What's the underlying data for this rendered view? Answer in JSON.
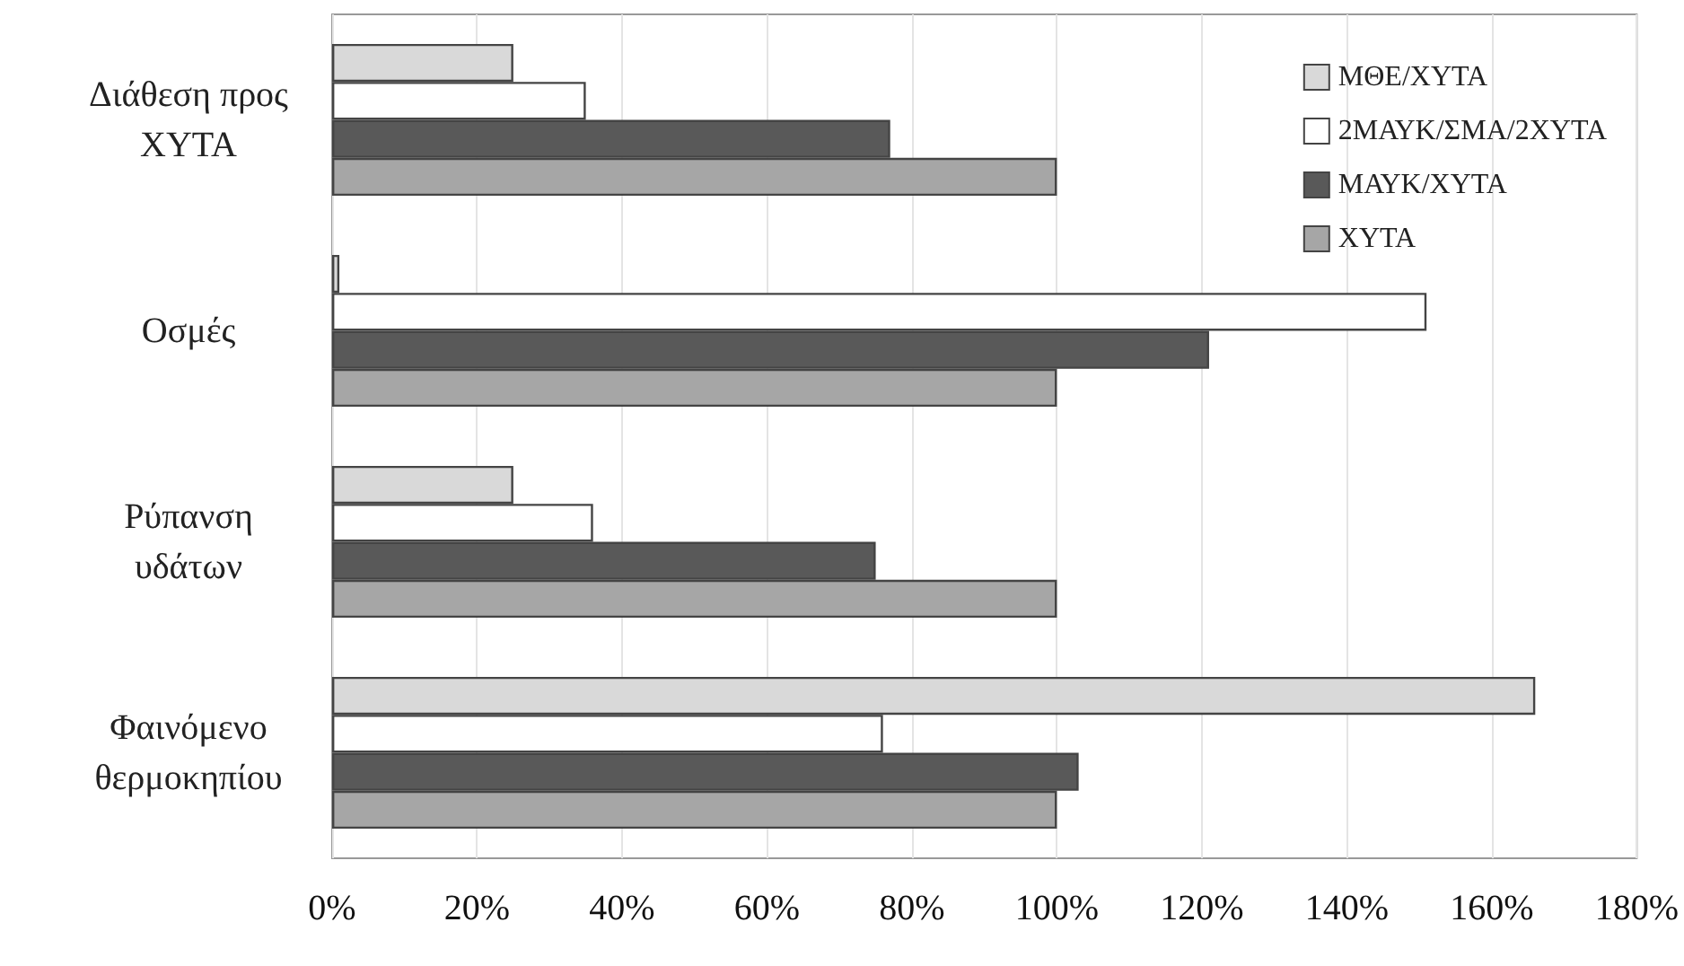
{
  "chart_data": {
    "type": "bar",
    "orientation": "horizontal",
    "categories": [
      "Διάθεση προς ΧΥΤΑ",
      "Οσμές",
      "Ρύπανση υδάτων",
      "Φαινόμενο θερμοκηπίου"
    ],
    "series": [
      {
        "name": "ΜΘΕ/ΧΥΤΑ",
        "color": "#d9d9d9",
        "values": [
          25,
          1,
          25,
          166
        ]
      },
      {
        "name": "2ΜΑΥΚ/ΣΜΑ/2ΧΥΤΑ",
        "color": "#ffffff",
        "values": [
          35,
          151,
          36,
          76
        ]
      },
      {
        "name": "ΜΑΥΚ/ΧΥΤΑ",
        "color": "#595959",
        "values": [
          77,
          121,
          75,
          103
        ]
      },
      {
        "name": "ΧΥΤΑ",
        "color": "#a6a6a6",
        "values": [
          100,
          100,
          100,
          100
        ]
      }
    ],
    "xlim": [
      0,
      180
    ],
    "xticks": [
      {
        "value": 0,
        "label": "0%"
      },
      {
        "value": 20,
        "label": "20%"
      },
      {
        "value": 40,
        "label": "40%"
      },
      {
        "value": 60,
        "label": "60%"
      },
      {
        "value": 80,
        "label": "80%"
      },
      {
        "value": 100,
        "label": "100%"
      },
      {
        "value": 120,
        "label": "120%"
      },
      {
        "value": 140,
        "label": "140%"
      },
      {
        "value": 160,
        "label": "160%"
      },
      {
        "value": 180,
        "label": "180%"
      }
    ],
    "grid": "x",
    "legend": "top right"
  }
}
